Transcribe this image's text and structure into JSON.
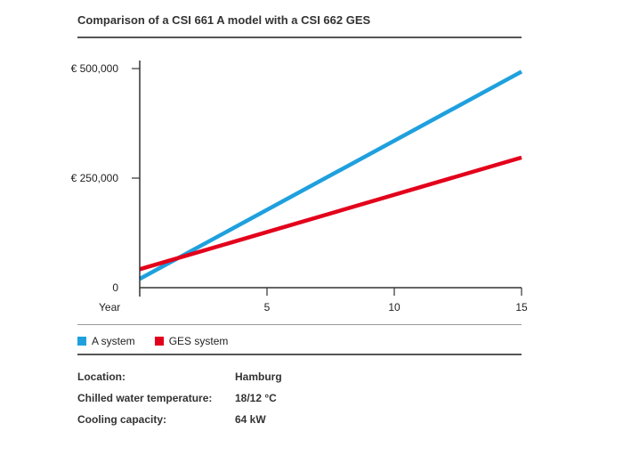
{
  "title": "Comparison of a CSI 661 A model with a CSI 662 GES",
  "chart_data": {
    "type": "line",
    "xlabel": "Year",
    "x_ticks": [
      5,
      10,
      15
    ],
    "y_ticks": [
      {
        "value": 0,
        "label": "0"
      },
      {
        "value": 250000,
        "label": "€ 250,000"
      },
      {
        "value": 500000,
        "label": "€ 500,000"
      }
    ],
    "xlim": [
      0,
      15
    ],
    "ylim": [
      0,
      500000
    ],
    "series": [
      {
        "name": "A system",
        "color": "#1fa0de",
        "x": [
          0,
          15
        ],
        "y": [
          20000,
          493000
        ]
      },
      {
        "name": "GES system",
        "color": "#e3001b",
        "x": [
          0,
          15
        ],
        "y": [
          42000,
          297000
        ]
      }
    ],
    "legend_position": "bottom"
  },
  "info": [
    {
      "label": "Location:",
      "value": "Hamburg"
    },
    {
      "label": "Chilled water temperature:",
      "value": "18/12 °C"
    },
    {
      "label": "Cooling capacity:",
      "value": "64 kW"
    }
  ]
}
